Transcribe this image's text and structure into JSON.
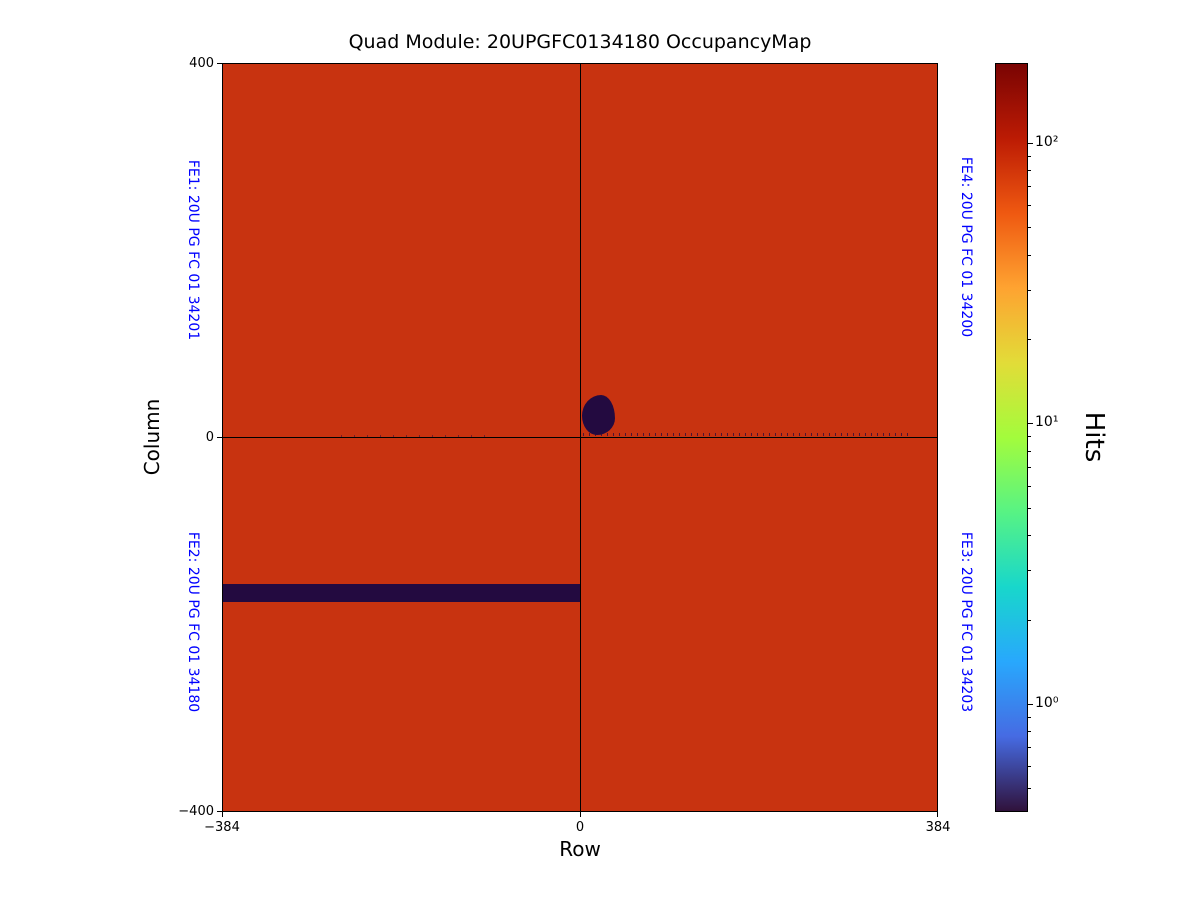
{
  "figure": {
    "title": "Quad Module: 20UPGFC0134180 OccupancyMap"
  },
  "axes": {
    "xlabel": "Row",
    "ylabel": "Column",
    "x_tick_labels": [
      "−384",
      "0",
      "384"
    ],
    "y_tick_labels": [
      "400",
      "0",
      "−400"
    ]
  },
  "fe_labels": {
    "fe1": "FE1: 20U PG FC 01 34201",
    "fe2": "FE2: 20U PG FC 01 34180",
    "fe4": "FE4: 20U PG FC 01 34200",
    "fe3": "FE3: 20U PG FC 01 34203",
    "color": "#0000ff"
  },
  "colorbar": {
    "label": "Hits",
    "scale": "log",
    "tick_labels": [
      "10²",
      "10¹",
      "10⁰"
    ],
    "tick_values": [
      100,
      10,
      1
    ]
  },
  "chart_data": {
    "type": "heatmap",
    "title": "Quad Module: 20UPGFC0134180 OccupancyMap",
    "xlabel": "Row",
    "ylabel": "Column",
    "xlim": [
      -384,
      384
    ],
    "ylim": [
      -400,
      400
    ],
    "x_ticks": [
      -384,
      0,
      384
    ],
    "y_ticks": [
      -400,
      0,
      400
    ],
    "colormap": "turbo",
    "colorbar": {
      "label": "Hits",
      "scale": "log",
      "ticks": [
        1,
        10,
        100
      ],
      "range_approx": [
        0.4,
        200
      ]
    },
    "baseline_occupancy_hits": 100,
    "chip_boundaries": {
      "row": 0,
      "column": 0
    },
    "quadrants": [
      {
        "fe": "FE1",
        "serial": "20U PG FC 01 34201",
        "position": "top-left"
      },
      {
        "fe": "FE4",
        "serial": "20U PG FC 01 34200",
        "position": "top-right"
      },
      {
        "fe": "FE2",
        "serial": "20U PG FC 01 34180",
        "position": "bottom-left"
      },
      {
        "fe": "FE3",
        "serial": "20U PG FC 01 34203",
        "position": "bottom-right"
      }
    ],
    "features": [
      {
        "name": "dead-blob",
        "description": "near-zero occupancy blob on FE4 near chip corner",
        "row_range": [
          2,
          37
        ],
        "column_range": [
          4,
          45
        ],
        "hits": 0
      },
      {
        "name": "dead-row-band",
        "description": "near-zero occupancy horizontal band on FE2",
        "row_range": [
          -384,
          0
        ],
        "column_range": [
          -175,
          -156
        ],
        "hits": 0
      },
      {
        "name": "noisy-boundary",
        "description": "scattered low-occupancy pixels along column 0 boundary",
        "row_range": [
          0,
          384
        ],
        "column_range": [
          -2,
          2
        ]
      }
    ],
    "colors": {
      "occupancy_base": "#c83310",
      "dead": "#230a40",
      "turbo_stops": [
        "#7a0403",
        "#bc1b04",
        "#ef5911",
        "#fea331",
        "#e2dc38",
        "#a3fc3c",
        "#57f384",
        "#18d7cb",
        "#28a8fd",
        "#466be3",
        "#30123b"
      ]
    }
  }
}
